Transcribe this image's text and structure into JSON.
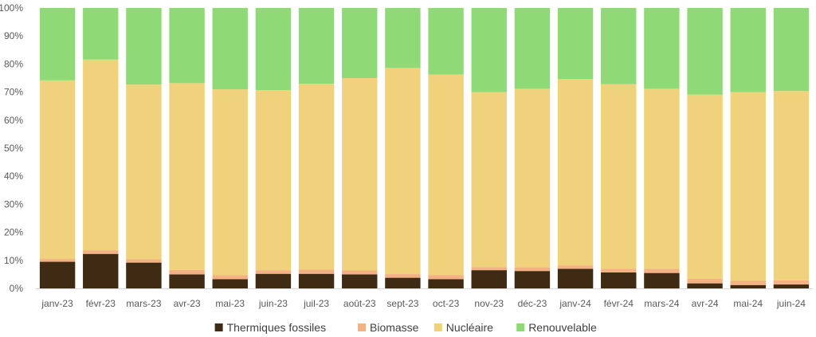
{
  "chart_data": {
    "type": "bar",
    "stacked": true,
    "categories": [
      "janv-23",
      "févr-23",
      "mars-23",
      "avr-23",
      "mai-23",
      "juin-23",
      "juil-23",
      "août-23",
      "sept-23",
      "oct-23",
      "nov-23",
      "déc-23",
      "janv-24",
      "févr-24",
      "mars-24",
      "avr-24",
      "mai-24",
      "juin-24"
    ],
    "series": [
      {
        "name": "Thermiques fossiles",
        "color": "#3f2a14",
        "values": [
          9.5,
          12.3,
          9.2,
          5.0,
          3.3,
          5.2,
          5.2,
          5.0,
          3.8,
          3.3,
          6.5,
          6.2,
          7.0,
          5.7,
          5.5,
          1.8,
          1.2,
          1.4
        ]
      },
      {
        "name": "Biomasse",
        "color": "#f4b183",
        "values": [
          1.0,
          1.3,
          1.2,
          1.6,
          1.4,
          1.3,
          1.5,
          1.4,
          1.3,
          1.5,
          1.1,
          1.3,
          1.2,
          1.3,
          1.5,
          1.6,
          1.5,
          1.5
        ]
      },
      {
        "name": "Nucléaire",
        "color": "#efd27b",
        "values": [
          63.7,
          68.0,
          62.3,
          66.6,
          66.3,
          64.2,
          66.3,
          68.6,
          73.5,
          71.5,
          62.4,
          63.7,
          66.5,
          65.8,
          64.2,
          65.7,
          67.3,
          67.5
        ]
      },
      {
        "name": "Renouvelable",
        "color": "#8fda76",
        "values": [
          25.8,
          18.4,
          27.3,
          26.8,
          29.0,
          29.3,
          27.0,
          25.0,
          21.4,
          23.7,
          30.0,
          28.8,
          25.3,
          27.2,
          28.8,
          30.9,
          30.0,
          29.6
        ]
      }
    ],
    "yticks": [
      "0%",
      "10%",
      "20%",
      "30%",
      "40%",
      "50%",
      "60%",
      "70%",
      "80%",
      "90%",
      "100%"
    ],
    "ylim": [
      0,
      100
    ],
    "grid": false,
    "legend_position": "bottom"
  }
}
